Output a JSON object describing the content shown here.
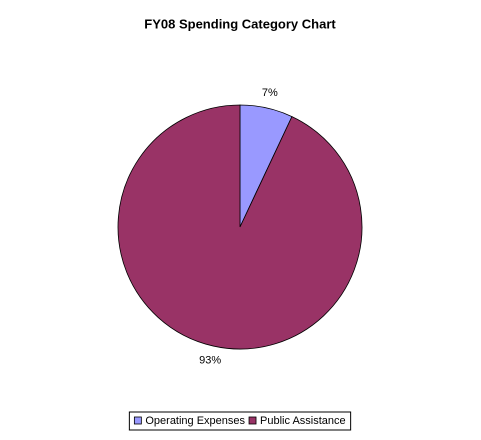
{
  "chart_data": {
    "type": "pie",
    "title": "FY08 Spending Category Chart",
    "categories": [
      "Operating Expenses",
      "Public Assistance"
    ],
    "values": [
      7,
      93
    ],
    "value_labels": [
      "7%",
      "93%"
    ],
    "colors": [
      "#9999ff",
      "#993366"
    ],
    "legend": "bottom"
  }
}
